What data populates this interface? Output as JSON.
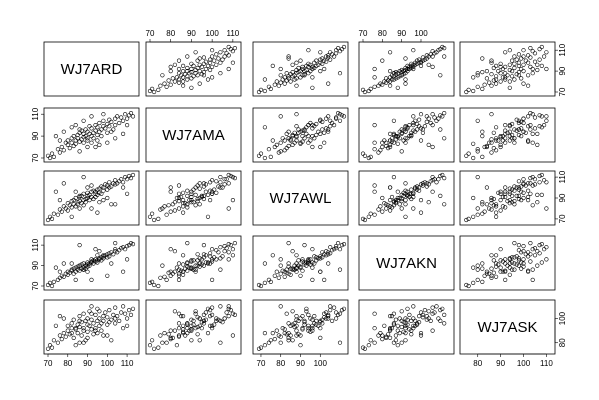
{
  "chart_data": {
    "type": "scatter",
    "variables": [
      "WJ7ARD",
      "WJ7AMA",
      "WJ7AWL",
      "WJ7AKN",
      "WJ7ASK"
    ],
    "ranges": [
      [
        70,
        114
      ],
      [
        70,
        112
      ],
      [
        68,
        112
      ],
      [
        70,
        115
      ],
      [
        74,
        112
      ]
    ],
    "ticks": [
      [
        70,
        80,
        90,
        100,
        110
      ],
      [
        70,
        90,
        110
      ],
      [
        70,
        90,
        110
      ],
      [
        70,
        90
      ],
      [
        80,
        100
      ]
    ],
    "top_axis_ticks": {
      "1": [
        "70",
        "80",
        "90",
        "100",
        "110"
      ],
      "3": [
        "70",
        "80",
        "90",
        "100"
      ]
    },
    "bottom_axis_ticks": {
      "0": [
        "70",
        "80",
        "90",
        "100",
        "110"
      ],
      "2": [
        "70",
        "80",
        "90",
        "100"
      ],
      "4": [
        "80",
        "90",
        "100",
        "110"
      ]
    },
    "left_axis_ticks": {
      "1": [
        "70",
        "90",
        "110"
      ],
      "3": [
        "70",
        "90",
        "110"
      ]
    },
    "right_axis_ticks": {
      "0": [
        "70",
        "90",
        "110"
      ],
      "2": [
        "70",
        "90",
        "110"
      ],
      "4": [
        "80",
        "100"
      ]
    },
    "observations": [
      [
        70,
        72,
        69,
        71,
        75
      ],
      [
        71,
        70,
        72,
        73,
        78
      ],
      [
        72,
        74,
        70,
        70,
        76
      ],
      [
        73,
        71,
        75,
        74,
        82
      ],
      [
        75,
        78,
        74,
        76,
        80
      ],
      [
        76,
        75,
        79,
        78,
        86
      ],
      [
        77,
        80,
        77,
        80,
        83
      ],
      [
        78,
        77,
        82,
        79,
        88
      ],
      [
        79,
        84,
        80,
        82,
        85
      ],
      [
        80,
        82,
        78,
        84,
        90
      ],
      [
        80,
        86,
        85,
        81,
        94
      ],
      [
        81,
        79,
        83,
        83,
        87
      ],
      [
        82,
        88,
        81,
        85,
        92
      ],
      [
        82,
        84,
        87,
        86,
        96
      ],
      [
        83,
        81,
        84,
        82,
        84
      ],
      [
        83,
        90,
        88,
        87,
        99
      ],
      [
        84,
        86,
        82,
        84,
        91
      ],
      [
        84,
        83,
        90,
        88,
        78
      ],
      [
        85,
        91,
        86,
        86,
        95
      ],
      [
        85,
        88,
        84,
        89,
        88
      ],
      [
        86,
        85,
        91,
        85,
        102
      ],
      [
        86,
        93,
        87,
        90,
        93
      ],
      [
        87,
        87,
        85,
        87,
        86
      ],
      [
        87,
        95,
        92,
        91,
        97
      ],
      [
        88,
        89,
        88,
        88,
        90
      ],
      [
        88,
        92,
        83,
        86,
        104
      ],
      [
        88,
        84,
        94,
        92,
        92
      ],
      [
        89,
        96,
        89,
        90,
        98
      ],
      [
        89,
        90,
        86,
        87,
        82
      ],
      [
        90,
        88,
        92,
        93,
        95
      ],
      [
        90,
        94,
        90,
        89,
        100
      ],
      [
        90,
        86,
        95,
        91,
        89
      ],
      [
        91,
        99,
        88,
        92,
        94
      ],
      [
        91,
        92,
        93,
        90,
        106
      ],
      [
        92,
        90,
        91,
        94,
        91
      ],
      [
        92,
        97,
        96,
        93,
        99
      ],
      [
        93,
        93,
        89,
        95,
        87
      ],
      [
        93,
        88,
        97,
        92,
        96
      ],
      [
        94,
        100,
        94,
        94,
        103
      ],
      [
        94,
        95,
        91,
        96,
        92
      ],
      [
        95,
        91,
        98,
        95,
        98
      ],
      [
        95,
        98,
        93,
        93,
        108
      ],
      [
        96,
        94,
        99,
        97,
        94
      ],
      [
        96,
        102,
        95,
        96,
        100
      ],
      [
        97,
        96,
        101,
        98,
        96
      ],
      [
        97,
        90,
        94,
        95,
        90
      ],
      [
        98,
        99,
        97,
        99,
        102
      ],
      [
        98,
        104,
        100,
        97,
        98
      ],
      [
        99,
        97,
        103,
        100,
        105
      ],
      [
        100,
        101,
        98,
        98,
        95
      ],
      [
        100,
        93,
        102,
        101,
        101
      ],
      [
        101,
        105,
        100,
        99,
        97
      ],
      [
        101,
        99,
        105,
        102,
        107
      ],
      [
        102,
        103,
        101,
        103,
        99
      ],
      [
        103,
        96,
        104,
        101,
        103
      ],
      [
        104,
        106,
        103,
        104,
        100
      ],
      [
        104,
        100,
        107,
        106,
        109
      ],
      [
        105,
        108,
        104,
        103,
        102
      ],
      [
        106,
        102,
        106,
        105,
        98
      ],
      [
        107,
        107,
        108,
        107,
        105
      ],
      [
        108,
        104,
        105,
        108,
        110
      ],
      [
        109,
        110,
        110,
        106,
        104
      ],
      [
        110,
        106,
        108,
        109,
        100
      ],
      [
        111,
        109,
        111,
        110,
        107
      ],
      [
        112,
        111,
        109,
        112,
        103
      ],
      [
        113,
        108,
        112,
        111,
        108
      ],
      [
        86,
        76,
        80,
        90,
        80
      ],
      [
        90,
        80,
        100,
        84,
        84
      ],
      [
        95,
        86,
        76,
        100,
        88
      ],
      [
        100,
        84,
        90,
        80,
        86
      ],
      [
        84,
        100,
        96,
        76,
        92
      ],
      [
        92,
        108,
        80,
        96,
        110
      ],
      [
        78,
        94,
        104,
        92,
        100
      ],
      [
        104,
        88,
        84,
        112,
        96
      ],
      [
        88,
        104,
        110,
        86,
        80
      ],
      [
        96,
        82,
        86,
        104,
        106
      ],
      [
        74,
        90,
        96,
        88,
        94
      ],
      [
        82,
        98,
        72,
        92,
        88
      ],
      [
        108,
        92,
        100,
        84,
        92
      ],
      [
        98,
        110,
        88,
        100,
        86
      ],
      [
        92,
        84,
        102,
        76,
        104
      ],
      [
        86,
        96,
        92,
        110,
        98
      ],
      [
        76,
        86,
        88,
        84,
        102
      ],
      [
        102,
        94,
        84,
        92,
        82
      ],
      [
        94,
        80,
        96,
        106,
        90
      ],
      [
        110,
        100,
        94,
        96,
        94
      ]
    ]
  }
}
